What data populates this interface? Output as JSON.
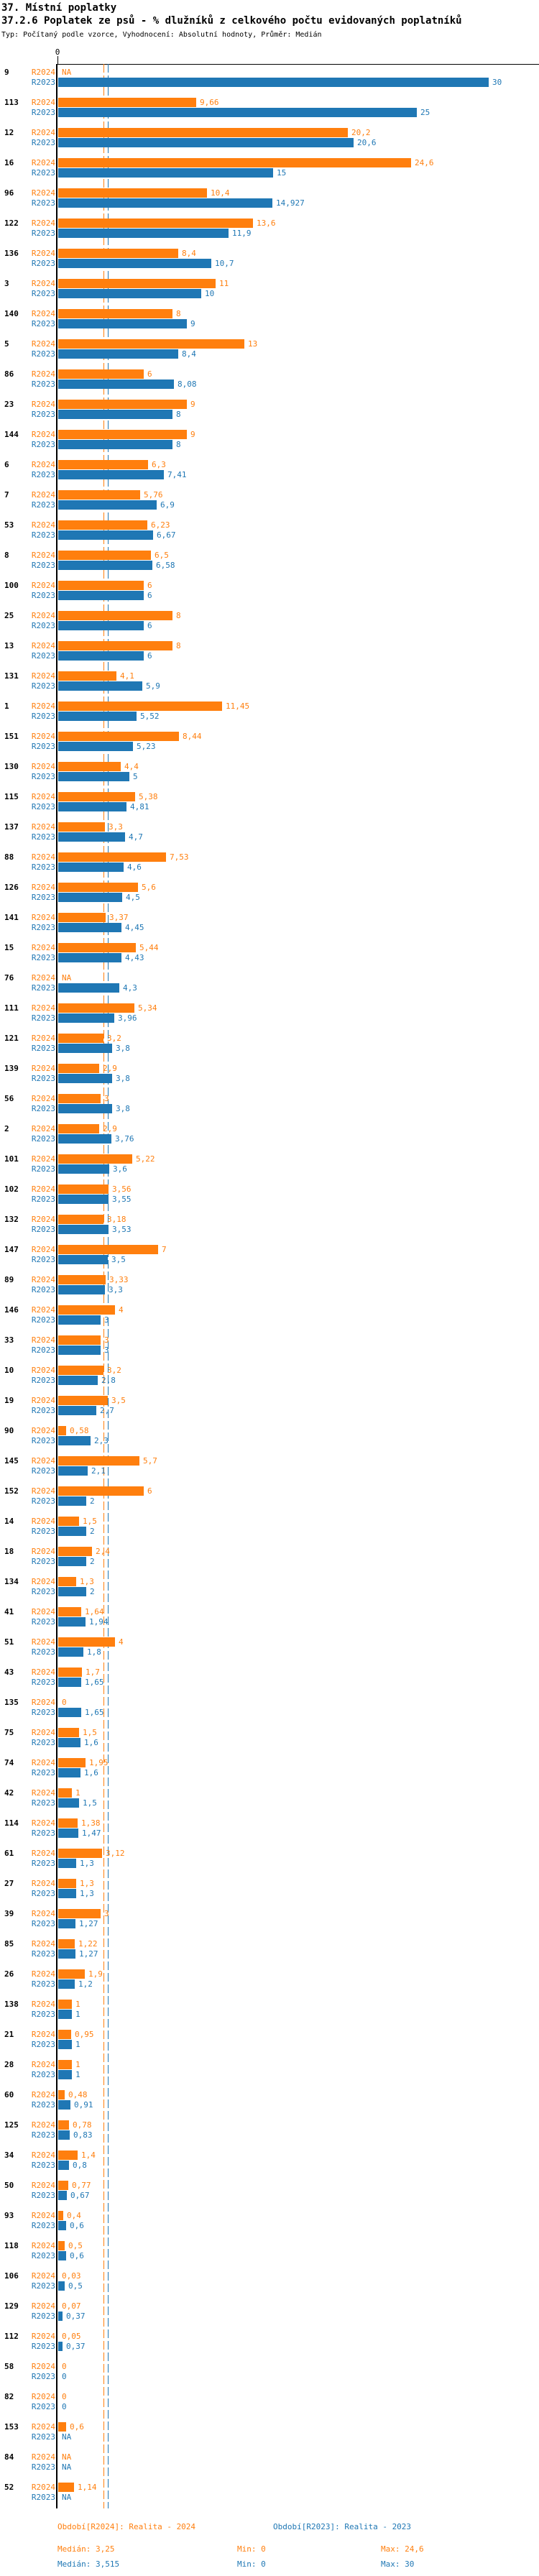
{
  "header": {
    "title": "37. Místní poplatky",
    "subtitle": "37.2.6 Poplatek ze psů - % dlužníků z celkového počtu evidovaných poplatníků",
    "meta": "Typ: Počítaný podle vzorce, Vyhodnocení: Absolutní hodnoty, Průměr: Medián"
  },
  "axis": {
    "zero_label": "0"
  },
  "colors": {
    "r2024": "#ff7f0e",
    "r2023": "#1f77b4",
    "axis": "#000000"
  },
  "chart_data": {
    "type": "bar",
    "orientation": "horizontal",
    "xlim": [
      0,
      30
    ],
    "grid": "off",
    "reference_lines": {
      "r2024_median": 3.25,
      "r2023_median": 3.515
    },
    "row_labels": {
      "r2024": "R2024",
      "r2023": "R2023"
    },
    "categories": [
      "9",
      "113",
      "12",
      "16",
      "96",
      "122",
      "136",
      "3",
      "140",
      "5",
      "86",
      "23",
      "144",
      "6",
      "7",
      "53",
      "8",
      "100",
      "25",
      "13",
      "131",
      "1",
      "151",
      "130",
      "115",
      "137",
      "88",
      "126",
      "141",
      "15",
      "76",
      "111",
      "121",
      "139",
      "56",
      "2",
      "101",
      "102",
      "132",
      "147",
      "89",
      "146",
      "33",
      "10",
      "19",
      "90",
      "145",
      "152",
      "14",
      "18",
      "134",
      "41",
      "51",
      "43",
      "135",
      "75",
      "74",
      "42",
      "114",
      "61",
      "27",
      "39",
      "85",
      "26",
      "138",
      "21",
      "28",
      "60",
      "125",
      "34",
      "50",
      "93",
      "118",
      "106",
      "129",
      "112",
      "58",
      "82",
      "153",
      "84",
      "52"
    ],
    "series": [
      {
        "name": "Období[R2024]: Realita - 2024",
        "key": "R2024",
        "color": "#ff7f0e",
        "values": [
          null,
          9.66,
          20.2,
          24.6,
          10.4,
          13.6,
          8.4,
          11,
          8,
          13,
          6,
          9,
          9,
          6.3,
          5.76,
          6.23,
          6.5,
          6,
          8,
          8,
          4.1,
          11.45,
          8.44,
          4.4,
          5.38,
          3.3,
          7.53,
          5.6,
          3.37,
          5.44,
          null,
          5.34,
          3.2,
          2.9,
          3,
          2.9,
          5.22,
          3.56,
          3.18,
          7,
          3.33,
          4,
          3,
          3.2,
          3.5,
          0.58,
          5.7,
          6,
          1.5,
          2.4,
          1.3,
          1.64,
          4,
          1.7,
          0,
          1.5,
          1.95,
          1,
          1.38,
          3.12,
          1.3,
          3,
          1.22,
          1.9,
          1,
          0.95,
          1,
          0.48,
          0.78,
          1.4,
          0.77,
          0.4,
          0.5,
          0.03,
          0.07,
          0.05,
          0,
          0,
          0.6,
          null,
          1.14
        ],
        "labels": [
          "NA",
          "9,66",
          "20,2",
          "24,6",
          "10,4",
          "13,6",
          "8,4",
          "11",
          "8",
          "13",
          "6",
          "9",
          "9",
          "6,3",
          "5,76",
          "6,23",
          "6,5",
          "6",
          "8",
          "8",
          "4,1",
          "11,45",
          "8,44",
          "4,4",
          "5,38",
          "3,3",
          "7,53",
          "5,6",
          "3,37",
          "5,44",
          "NA",
          "5,34",
          "3,2",
          "2,9",
          "3",
          "2,9",
          "5,22",
          "3,56",
          "3,18",
          "7",
          "3,33",
          "4",
          "3",
          "3,2",
          "3,5",
          "0,58",
          "5,7",
          "6",
          "1,5",
          "2,4",
          "1,3",
          "1,64",
          "4",
          "1,7",
          "0",
          "1,5",
          "1,95",
          "1",
          "1,38",
          "3,12",
          "1,3",
          "3",
          "1,22",
          "1,9",
          "1",
          "0,95",
          "1",
          "0,48",
          "0,78",
          "1,4",
          "0,77",
          "0,4",
          "0,5",
          "0,03",
          "0,07",
          "0,05",
          "0",
          "0",
          "0,6",
          "NA",
          "1,14"
        ]
      },
      {
        "name": "Období[R2023]: Realita - 2023",
        "key": "R2023",
        "color": "#1f77b4",
        "values": [
          30,
          25,
          20.6,
          15,
          14.927,
          11.9,
          10.7,
          10,
          9,
          8.4,
          8.08,
          8,
          8,
          7.41,
          6.9,
          6.67,
          6.58,
          6,
          6,
          6,
          5.9,
          5.52,
          5.23,
          5,
          4.81,
          4.7,
          4.6,
          4.5,
          4.45,
          4.43,
          4.3,
          3.96,
          3.8,
          3.8,
          3.8,
          3.76,
          3.6,
          3.55,
          3.53,
          3.5,
          3.3,
          3,
          3,
          2.8,
          2.7,
          2.3,
          2.1,
          2,
          2,
          2,
          2,
          1.94,
          1.8,
          1.65,
          1.65,
          1.6,
          1.6,
          1.5,
          1.47,
          1.3,
          1.3,
          1.27,
          1.27,
          1.2,
          1,
          1,
          1,
          0.91,
          0.83,
          0.8,
          0.67,
          0.6,
          0.6,
          0.5,
          0.37,
          0.37,
          0,
          0,
          null,
          null,
          null
        ],
        "labels": [
          "30",
          "25",
          "20,6",
          "15",
          "14,927",
          "11,9",
          "10,7",
          "10",
          "9",
          "8,4",
          "8,08",
          "8",
          "8",
          "7,41",
          "6,9",
          "6,67",
          "6,58",
          "6",
          "6",
          "6",
          "5,9",
          "5,52",
          "5,23",
          "5",
          "4,81",
          "4,7",
          "4,6",
          "4,5",
          "4,45",
          "4,43",
          "4,3",
          "3,96",
          "3,8",
          "3,8",
          "3,8",
          "3,76",
          "3,6",
          "3,55",
          "3,53",
          "3,5",
          "3,3",
          "3",
          "3",
          "2,8",
          "2,7",
          "2,3",
          "2,1",
          "2",
          "2",
          "2",
          "2",
          "1,94",
          "1,8",
          "1,65",
          "1,65",
          "1,6",
          "1,6",
          "1,5",
          "1,47",
          "1,3",
          "1,3",
          "1,27",
          "1,27",
          "1,2",
          "1",
          "1",
          "1",
          "0,91",
          "0,83",
          "0,8",
          "0,67",
          "0,6",
          "0,6",
          "0,5",
          "0,37",
          "0,37",
          "0",
          "0",
          "NA",
          "NA",
          "NA"
        ]
      }
    ]
  },
  "legend": {
    "r2024_title": "Období[R2024]: Realita - 2024",
    "r2023_title": "Období[R2023]: Realita - 2023",
    "r2024_stats": {
      "median": "Medián: 3,25",
      "min": "Min: 0",
      "max": "Max: 24,6"
    },
    "r2023_stats": {
      "median": "Medián: 3,515",
      "min": "Min: 0",
      "max": "Max: 30"
    }
  }
}
